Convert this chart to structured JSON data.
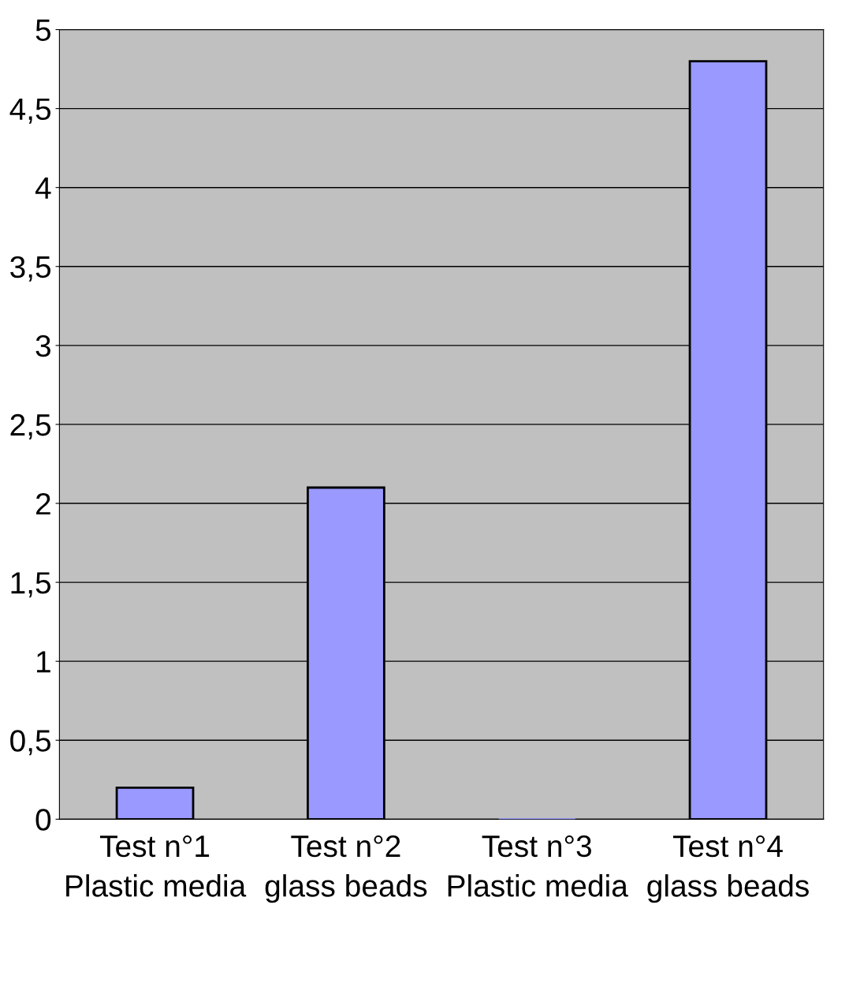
{
  "chart_data": {
    "type": "bar",
    "categories": [
      "Test n°1 Plastic media",
      "Test n°2 glass beads",
      "Test n°3 Plastic media",
      "Test n°4 glass beads"
    ],
    "values": [
      0.2,
      2.1,
      0,
      4.8
    ],
    "color": "#9999ff",
    "ylim": [
      0,
      5
    ],
    "yticks": [
      0,
      {
        "value": 0.5,
        "label": "0,5"
      },
      1,
      {
        "value": 1.5,
        "label": "1,5"
      },
      2,
      {
        "value": 2.5,
        "label": "2,5"
      },
      3,
      {
        "value": 3.5,
        "label": "3,5"
      },
      4,
      {
        "value": 4.5,
        "label": "4,5"
      },
      5
    ],
    "grid": "y"
  }
}
